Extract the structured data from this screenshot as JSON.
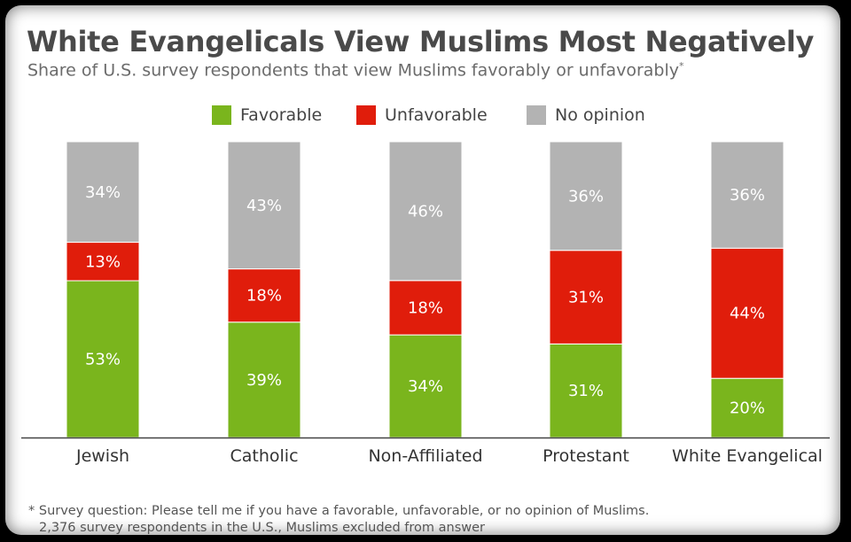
{
  "chart_data": {
    "type": "bar",
    "stacked": true,
    "title": "White Evangelicals View Muslims Most Negatively",
    "subtitle": "Share of U.S. survey respondents that view Muslims favorably or unfavorably",
    "subtitle_mark": "*",
    "categories": [
      "Jewish",
      "Catholic",
      "Non-Affiliated",
      "Protestant",
      "White Evangelical"
    ],
    "series": [
      {
        "name": "Favorable",
        "color": "#7ab51d",
        "values": [
          53,
          39,
          34,
          31,
          20
        ],
        "labels": [
          "53%",
          "39%",
          "34%",
          "31%",
          "20%"
        ]
      },
      {
        "name": "Unfavorable",
        "color": "#e01d0b",
        "values": [
          13,
          18,
          18,
          31,
          44
        ],
        "labels": [
          "13%",
          "18%",
          "18%",
          "31%",
          "44%"
        ]
      },
      {
        "name": "No opinion",
        "color": "#b3b3b3",
        "values": [
          34,
          43,
          46,
          36,
          36
        ],
        "labels": [
          "34%",
          "43%",
          "46%",
          "36%",
          "36%"
        ]
      }
    ],
    "ylim": [
      0,
      100
    ],
    "grid": false,
    "legend_position": "top-center",
    "footnotes": [
      "* Survey question: Please tell me if you have a favorable, unfavorable, or no opinion of Muslims.",
      "2,376 survey respondents in the U.S., Muslims excluded from answer"
    ]
  }
}
